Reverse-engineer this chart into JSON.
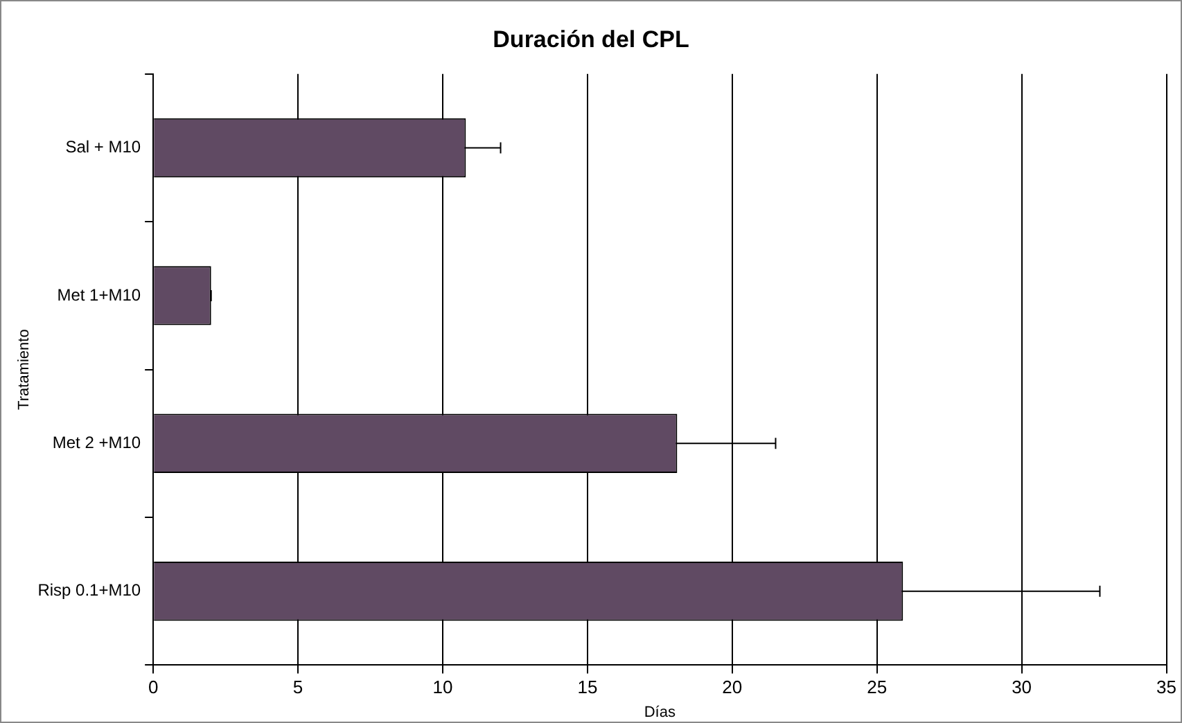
{
  "chart_data": {
    "type": "bar",
    "orientation": "horizontal",
    "title": "Duración del CPL",
    "xlabel": "Días",
    "ylabel": "Tratamiento",
    "categories": [
      "Sal + M10",
      "Met 1+M10",
      "Met 2 +M10",
      "Risp 0.1+M10"
    ],
    "values": [
      10.8,
      2.0,
      18.1,
      25.9
    ],
    "errors": [
      1.2,
      0,
      3.4,
      6.8
    ],
    "color": "#604a63",
    "xlim": [
      0,
      35
    ],
    "xticks": [
      0,
      5,
      10,
      15,
      20,
      25,
      30,
      35
    ],
    "grid": "x",
    "legend": false
  }
}
